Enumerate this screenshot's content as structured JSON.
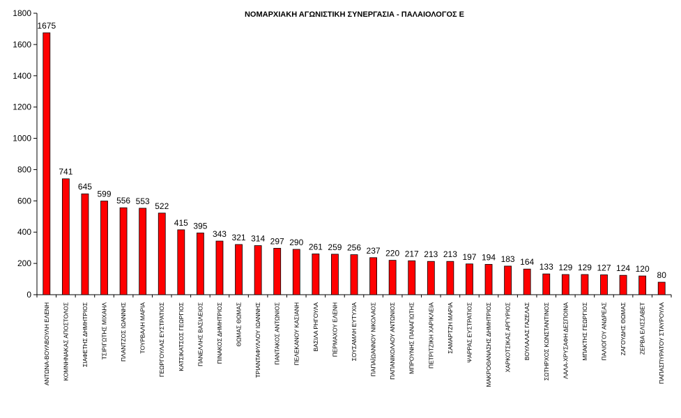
{
  "chart_data": {
    "type": "bar",
    "title": "ΝΟΜΑΡΧΙΑΚΗ ΑΓΩΝΙΣΤΙΚΗ ΣΥΝΕΡΓΑΣΙΑ - ΠΑΛΑΙΟΛΟΓΟΣ Ε",
    "ylim": [
      0,
      1800
    ],
    "yticks": [
      0,
      200,
      400,
      600,
      800,
      1000,
      1200,
      1400,
      1600,
      1800
    ],
    "bar_color": "#ff0000",
    "grid": false,
    "legend": "none",
    "categories": [
      "ΑΝΤΩΝΑ-ΒΟΥΛΒΟΥΛΗ ΕΛΕΝΗ",
      "ΚΟΜΝΗΝΑΚΑΣ ΑΠΟΣΤΟΛΟΣ",
      "ΣΙΑΦΕΤΗΣ ΔΗΜΗΤΡΙΟΣ",
      "ΤΣΙΡΙΓΩΤΗΣ ΜΙΧΑΗΛ",
      "ΠΛΑΝΤΖΟΣ ΙΩΑΝΝΗΣ",
      "ΤΟΥΡΒΑΛΗ ΜΑΡΙΑ",
      "ΓΕΩΡΓΟΥΛΑΣ ΕΥΣΤΡΑΤΙΟΣ",
      "ΚΑΤΣΙΚΑΤΣΟΣ ΓΕΩΡΓΙΟΣ",
      "ΠΑΝΕΛΛΗΣ ΒΑΣΙΛΕΙΟΣ",
      "ΠΙΝΑΚΟΣ ΔΗΜΗΤΡΙΟΣ",
      "ΘΩΜΑΣ ΘΩΜΑΣ",
      "ΤΡΙΑΝΤΑΦΥΛΛΟΥ ΙΩΑΝΝΗΣ",
      "ΠΑΝΤΑΚΟΣ ΑΝΤΩΝΙΟΣ",
      "ΠΕΛΕΚΑΝΟΥ ΚΑΣΙΑΝΗ",
      "ΒΑΣΙΛΑ ΡΗΓΟΥΛΑ",
      "ΠΕΡΜΑΧΟΥ ΕΛΕΝΗ",
      "ΣΟΥΣΑΜΛΗ ΕΥΤΥΧΙΑ",
      "ΠΑΠΑΪΩΑΝΝΟΥ ΝΙΚΟΛΑΟΣ",
      "ΠΑΠΑΝΙΚΟΛΑΟΥ ΑΝΤΩΝΙΟΣ",
      "ΜΠΡΟΥΝΗΣ ΠΑΝΑΓΙΩΤΗΣ",
      "ΠΕΤΡΙΤΖΙΚΗ ΧΑΡΙΚΛΕΙΑ",
      "ΣΑΜΑΡΤΖΗ ΜΑΡΙΑ",
      "ΨΑΡΡΑΣ ΕΥΣΤΡΑΤΙΟΣ",
      "ΜΑΚΡΟΘΑΝΑΣΗΣ ΔΗΜΗΤΡΙΟΣ",
      "ΧΑΡΚΟΤΣΙΚΑΣ ΑΡΓΥΡΙΟΣ",
      "ΒΟΥΛΑΛΑΣ ΓΑΖΕΛΑΣ",
      "ΣΩΤΗΡΧΟΣ ΚΩΝΣΤΑΝΤΙΝΟΣ",
      "ΛΑΛΑ-ΧΡΥΣΑΦΗ ΔΕΣΠΟΙΝΑ",
      "ΜΠΑΚΤΗΣ ΓΕΩΡΓΙΟΣ",
      "ΠΑΛΙΟΓΟΥ ΑΝΔΡΕΑΣ",
      "ΖΑΓΟΥΔΗΣ ΘΩΜΑΣ",
      "ΖΕΡΒΑ ΕΛΙΣΣΑΒΕΤ",
      "ΠΑΠΑΣΠΥΡΑΤΟΥ ΣΤΑΥΡΟΥΛΑ"
    ],
    "values": [
      1675,
      741,
      645,
      599,
      556,
      553,
      522,
      415,
      395,
      343,
      321,
      314,
      297,
      290,
      261,
      259,
      256,
      237,
      220,
      217,
      213,
      213,
      197,
      194,
      183,
      164,
      133,
      129,
      129,
      127,
      124,
      120,
      80
    ]
  }
}
